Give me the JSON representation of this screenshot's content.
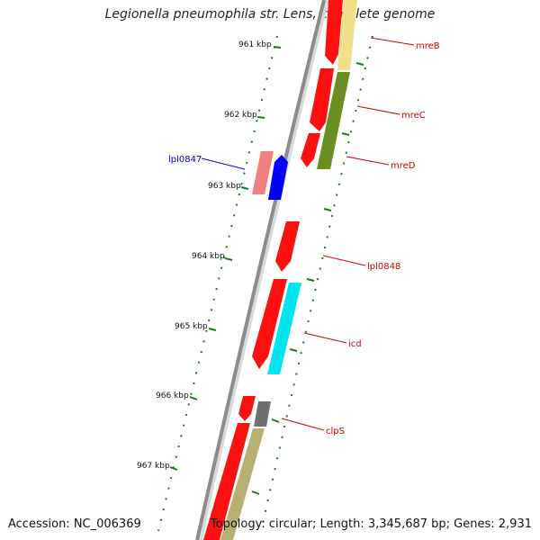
{
  "title": "Legionella pneumophila str. Lens, complete genome",
  "footer": {
    "accession": "Accession: NC_006369",
    "summary": "Topology: circular; Length: 3,345,687 bp; Genes: 2,931"
  },
  "colors": {
    "backbone": "#8c8c8c",
    "tick": "#1a7a1a",
    "forward_gene": "#ff0000",
    "reverse_gene_highlight": "#0000ff",
    "label_red": "#cc0000",
    "label_blue": "#0000cc"
  },
  "ticks": [
    "961 kbp",
    "962 kbp",
    "963 kbp",
    "964 kbp",
    "965 kbp",
    "966 kbp",
    "967 kbp"
  ],
  "gene_labels": [
    {
      "name": "mreB",
      "color": "#cc0000"
    },
    {
      "name": "mreC",
      "color": "#cc0000"
    },
    {
      "name": "mreD",
      "color": "#cc0000"
    },
    {
      "name": "lpl0847",
      "color": "#0000cc"
    },
    {
      "name": "lpl0848",
      "color": "#cc0000"
    },
    {
      "name": "icd",
      "color": "#cc0000"
    },
    {
      "name": "clpS",
      "color": "#cc0000"
    }
  ]
}
